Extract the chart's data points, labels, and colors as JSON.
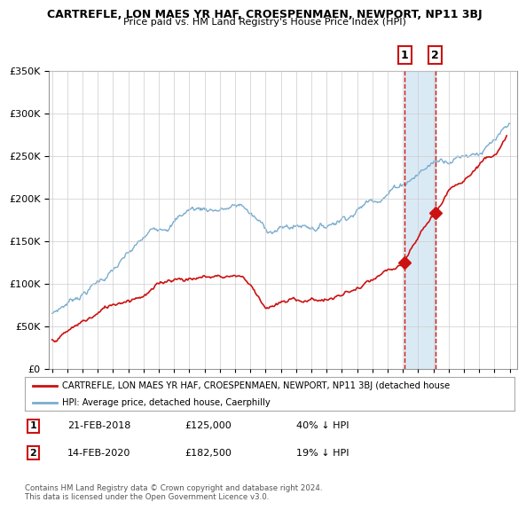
{
  "title": "CARTREFLE, LON MAES YR HAF, CROESPENMAEN, NEWPORT, NP11 3BJ",
  "subtitle": "Price paid vs. HM Land Registry's House Price Index (HPI)",
  "legend_line1": "CARTREFLE, LON MAES YR HAF, CROESPENMAEN, NEWPORT, NP11 3BJ (detached house",
  "legend_line2": "HPI: Average price, detached house, Caerphilly",
  "footer": "Contains HM Land Registry data © Crown copyright and database right 2024.\nThis data is licensed under the Open Government Licence v3.0.",
  "annotation1_label": "1",
  "annotation1_date": "21-FEB-2018",
  "annotation1_price": "£125,000",
  "annotation1_pct": "40% ↓ HPI",
  "annotation2_label": "2",
  "annotation2_date": "14-FEB-2020",
  "annotation2_price": "£182,500",
  "annotation2_pct": "19% ↓ HPI",
  "point1_year": 2018.12,
  "point1_value": 125000,
  "point2_year": 2020.12,
  "point2_value": 182500,
  "ylim": [
    0,
    350000
  ],
  "xlim": [
    1994.8,
    2025.5
  ],
  "hpi_color": "#7aadcf",
  "price_color": "#cc1111",
  "annotation_box_color": "#cc1111",
  "vline_color": "#cc1111",
  "grid_color": "#cccccc",
  "span_color": "#daeaf5",
  "background_color": "#ffffff"
}
